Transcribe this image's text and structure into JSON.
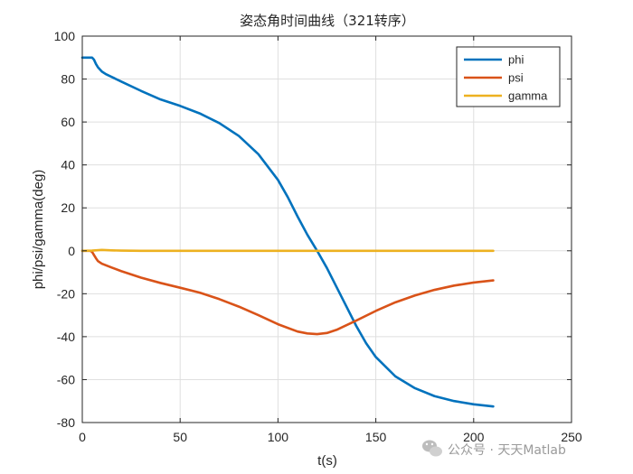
{
  "chart_data": {
    "type": "line",
    "title": "姿态角时间曲线（321转序）",
    "xlabel": "t(s)",
    "ylabel": "phi/psi/gamma(deg)",
    "xlim": [
      0,
      250
    ],
    "ylim": [
      -80,
      100
    ],
    "xticks": [
      0,
      50,
      100,
      150,
      200,
      250
    ],
    "yticks": [
      -80,
      -60,
      -40,
      -20,
      0,
      20,
      40,
      60,
      80,
      100
    ],
    "xtick_labels": [
      "0",
      "50",
      "100",
      "150",
      "200",
      "250"
    ],
    "ytick_labels": [
      "-80",
      "-60",
      "-40",
      "-20",
      "0",
      "20",
      "40",
      "60",
      "80",
      "100"
    ],
    "grid": true,
    "legend_position": "top-right",
    "series": [
      {
        "name": "phi",
        "color": "#0072BD",
        "x": [
          0,
          4,
          5,
          6,
          7,
          8,
          10,
          12,
          15,
          20,
          30,
          40,
          50,
          60,
          70,
          80,
          90,
          100,
          105,
          110,
          115,
          120,
          125,
          130,
          135,
          140,
          145,
          150,
          160,
          170,
          180,
          190,
          200,
          210
        ],
        "y": [
          90,
          90,
          90,
          89,
          87,
          85.5,
          83.5,
          82.3,
          81,
          78.8,
          74.5,
          70.5,
          67.5,
          64,
          59.5,
          53.5,
          45,
          33,
          25,
          16,
          7.5,
          0,
          -8,
          -17,
          -26,
          -35,
          -43,
          -49.5,
          -58.5,
          -64,
          -67.7,
          -70,
          -71.5,
          -72.5
        ]
      },
      {
        "name": "psi",
        "color": "#D95319",
        "x": [
          0,
          4,
          5,
          6,
          7,
          8,
          10,
          15,
          20,
          30,
          40,
          50,
          60,
          70,
          80,
          90,
          100,
          110,
          115,
          120,
          125,
          130,
          140,
          150,
          160,
          170,
          180,
          190,
          200,
          210
        ],
        "y": [
          0,
          0,
          -0.5,
          -2,
          -3.5,
          -4.8,
          -6,
          -7.8,
          -9.5,
          -12.5,
          -15,
          -17.2,
          -19.5,
          -22.5,
          -26,
          -30,
          -34.2,
          -37.6,
          -38.5,
          -38.8,
          -38.3,
          -36.8,
          -32.5,
          -28,
          -24,
          -20.8,
          -18.2,
          -16.2,
          -14.8,
          -13.8
        ]
      },
      {
        "name": "gamma",
        "color": "#EDB120",
        "x": [
          0,
          5,
          10,
          15,
          20,
          30,
          50,
          100,
          150,
          200,
          210
        ],
        "y": [
          0,
          0.1,
          0.4,
          0.2,
          0.1,
          0,
          0,
          0,
          0,
          0,
          0
        ]
      }
    ]
  },
  "watermark": {
    "icon": "wechat-icon",
    "text": "公众号 · 天天Matlab"
  }
}
